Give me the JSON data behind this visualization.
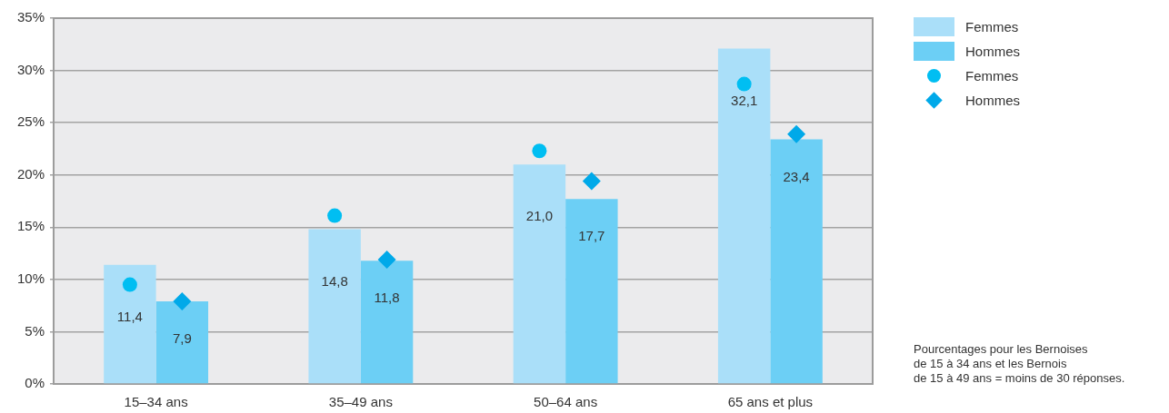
{
  "chart_data": {
    "type": "bar",
    "categories": [
      "15–34 ans",
      "35–49 ans",
      "50–64 ans",
      "65 ans et plus"
    ],
    "series": [
      {
        "name": "Femmes",
        "color": "#aadff9",
        "values": [
          11.4,
          14.8,
          21.0,
          32.1
        ],
        "value_labels": [
          "11,4",
          "14,8",
          "21,0",
          "32,1"
        ]
      },
      {
        "name": "Hommes",
        "color": "#6ccff5",
        "values": [
          7.9,
          11.8,
          17.7,
          23.4
        ],
        "value_labels": [
          "7,9",
          "11,8",
          "17,7",
          "23,4"
        ]
      },
      {
        "name": "Femmes",
        "type": "scatter",
        "color": "#00bef2",
        "marker": "circle",
        "x": [
          "15–34 ans",
          "35–49 ans",
          "50–64 ans",
          "65 ans et plus"
        ],
        "values": [
          9.5,
          16.1,
          22.3,
          28.7
        ]
      },
      {
        "name": "Hommes",
        "type": "scatter",
        "color": "#00a9e9",
        "marker": "diamond",
        "x": [
          "15–34 ans",
          "35–49 ans",
          "50–64 ans",
          "65 ans et plus"
        ],
        "values": [
          7.9,
          11.9,
          19.4,
          23.9
        ]
      }
    ],
    "ylim": [
      0,
      35
    ],
    "yticks": [
      {
        "value": 0,
        "label": "0%"
      },
      {
        "value": 5,
        "label": "5%"
      },
      {
        "value": 10,
        "label": "10%"
      },
      {
        "value": 15,
        "label": "15%"
      },
      {
        "value": 20,
        "label": "20%"
      },
      {
        "value": 25,
        "label": "25%"
      },
      {
        "value": 30,
        "label": "30%"
      },
      {
        "value": 35,
        "label": "35%"
      }
    ],
    "grid": "y",
    "legend": "right",
    "annotations": [
      "Pourcentages pour les Bernoises\nde 15 à 34 ans et les Bernois\nde 15 à 49 ans = moins de 30 réponses."
    ]
  }
}
